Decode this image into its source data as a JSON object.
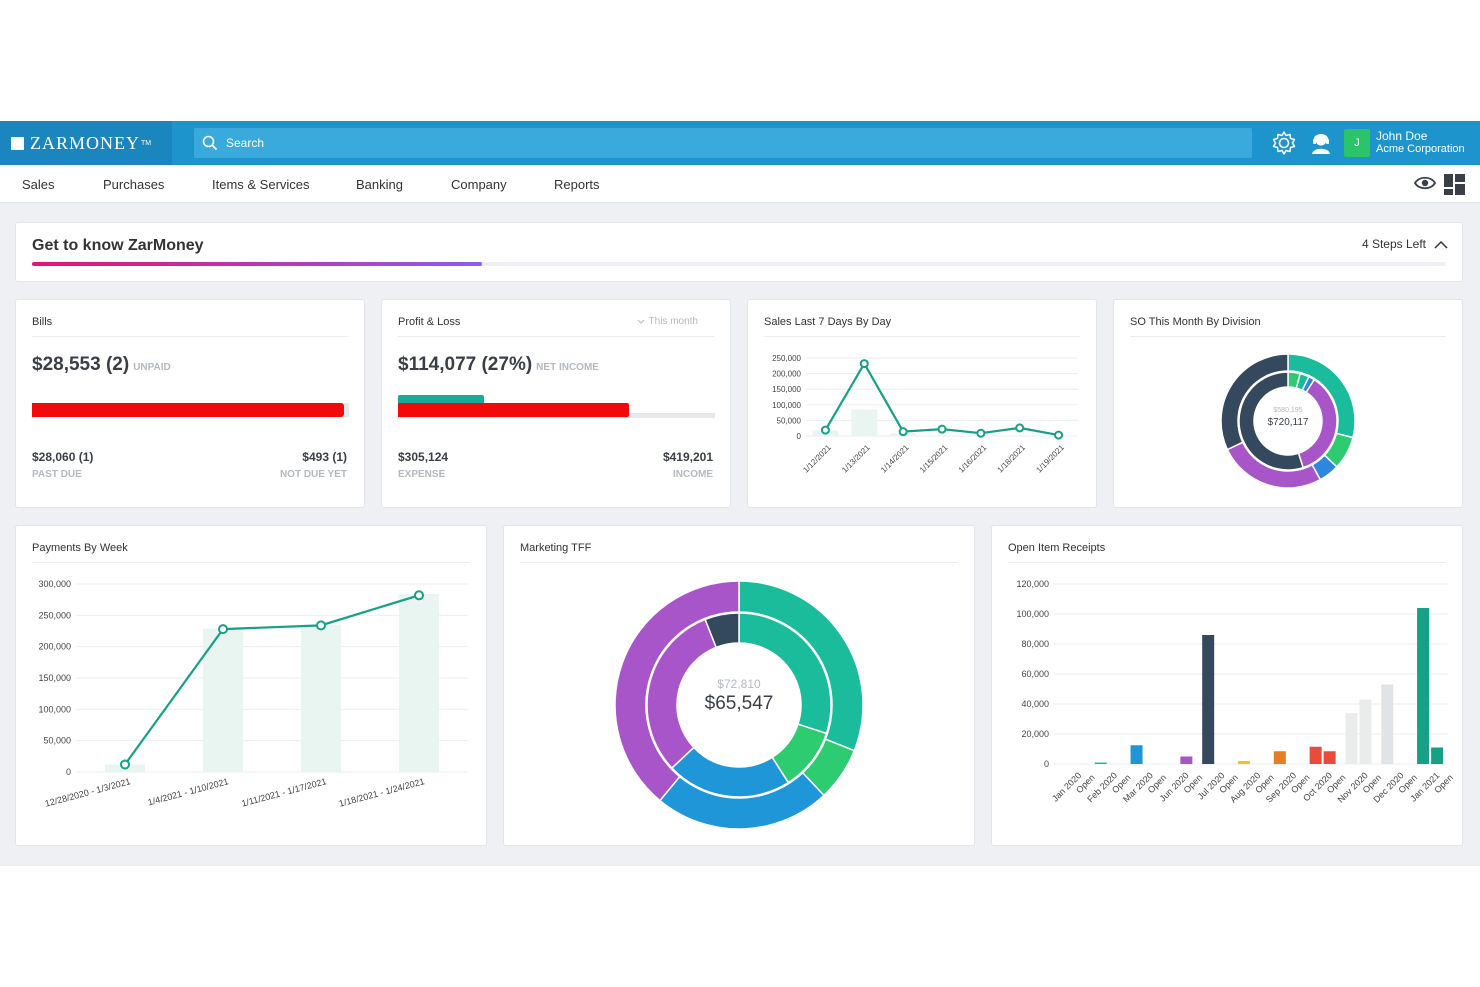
{
  "header": {
    "logo_text": "ZarMoney",
    "logo_tm": "TM",
    "search_placeholder": "Search",
    "user_initial": "J",
    "user_name": "John Doe",
    "user_company": "Acme Corporation"
  },
  "nav": {
    "items": [
      "Sales",
      "Purchases",
      "Items & Services",
      "Banking",
      "Company",
      "Reports"
    ]
  },
  "onboarding": {
    "title": "Get to know ZarMoney",
    "steps_left": "4 Steps Left",
    "progress_fraction": 0.318
  },
  "bills": {
    "title": "Bills",
    "amount": "$28,553 (2)",
    "amount_label": "UNPAID",
    "left_value": "$28,060 (1)",
    "left_label": "PAST DUE",
    "right_value": "$493 (1)",
    "right_label": "NOT DUE YET",
    "past_due_fraction": 0.983
  },
  "profit_loss": {
    "title": "Profit & Loss",
    "period": "This month",
    "amount": "$114,077 (27%)",
    "amount_label": "NET INCOME",
    "left_value": "$305,124",
    "left_label": "EXPENSE",
    "right_value": "$419,201",
    "right_label": "INCOME",
    "expense_fraction": 0.728,
    "net_fraction": 0.272
  },
  "colors": {
    "brand_blue": "#1e94cc",
    "line_teal": "#16a085",
    "bar_red": "#f20a0a"
  },
  "chart_data": [
    {
      "id": "sales_last_7_days",
      "type": "line",
      "title": "Sales Last 7 Days By Day",
      "x": [
        "1/12/2021",
        "1/13/2021",
        "1/14/2021",
        "1/15/2021",
        "1/16/2021",
        "1/18/2021",
        "1/19/2021"
      ],
      "series": [
        {
          "values": [
            19000,
            232000,
            14000,
            22000,
            9000,
            26000,
            3000
          ]
        },
        {
          "values": [
            18000,
            85000,
            9000,
            0,
            0,
            0,
            0
          ]
        }
      ],
      "yticks": [
        "250,000",
        "200,000",
        "150,000",
        "100,000",
        "50,000",
        "0"
      ],
      "ylim": [
        0,
        250000
      ]
    },
    {
      "id": "so_by_division",
      "type": "pie",
      "title": "SO This Month By Division",
      "center_top": "$580,195",
      "center_main": "$720,117",
      "outer": [
        {
          "value": 0.29,
          "color": "#1abc9c"
        },
        {
          "value": 0.08,
          "color": "#2ecc71"
        },
        {
          "value": 0.05,
          "color": "#2e86de"
        },
        {
          "value": 0.26,
          "color": "#a855c9"
        },
        {
          "value": 0.32,
          "color": "#34495e"
        }
      ],
      "inner": [
        {
          "value": 0.04,
          "color": "#2ecc71"
        },
        {
          "value": 0.03,
          "color": "#1abc9c"
        },
        {
          "value": 0.02,
          "color": "#2e86de"
        },
        {
          "value": 0.36,
          "color": "#a855c9"
        },
        {
          "value": 0.55,
          "color": "#34495e"
        }
      ]
    },
    {
      "id": "payments_by_week",
      "type": "line",
      "title": "Payments By Week",
      "x": [
        "12/28/2020 - 1/3/2021",
        "1/4/2021 - 1/10/2021",
        "1/11/2021 - 1/17/2021",
        "1/18/2021 - 1/24/2021"
      ],
      "series": [
        {
          "values": [
            12000,
            228000,
            234000,
            282000
          ]
        },
        {
          "values": [
            12000,
            229000,
            235000,
            284000
          ]
        }
      ],
      "yticks": [
        "300,000",
        "250,000",
        "200,000",
        "150,000",
        "100,000",
        "50,000",
        "0"
      ],
      "ylim": [
        0,
        300000
      ]
    },
    {
      "id": "marketing_tff",
      "type": "pie",
      "title": "Marketing TFF",
      "center_top": "$72,810",
      "center_main": "$65,547",
      "outer": [
        {
          "value": 0.31,
          "color": "#1abc9c"
        },
        {
          "value": 0.07,
          "color": "#2ecc71"
        },
        {
          "value": 0.23,
          "color": "#1e96d8"
        },
        {
          "value": 0.39,
          "color": "#a855c9"
        }
      ],
      "inner": [
        {
          "value": 0.3,
          "color": "#1abc9c"
        },
        {
          "value": 0.11,
          "color": "#2ecc71"
        },
        {
          "value": 0.22,
          "color": "#1e96d8"
        },
        {
          "value": 0.31,
          "color": "#a855c9"
        },
        {
          "value": 0.06,
          "color": "#34495e"
        }
      ]
    },
    {
      "id": "open_item_receipts",
      "type": "bar",
      "title": "Open Item Receipts",
      "categories": [
        "Jan 2020 Open",
        "Feb 2020 Open",
        "Mar 2020 Open",
        "Jun 2020 Open",
        "Jul 2020 Open",
        "Aug 2020 Open",
        "Sep 2020 Open",
        "Oct 2020 Open",
        "Nov 2020 Open",
        "Dec 2020 Open",
        "Jan 2021 Open"
      ],
      "series": [
        {
          "values": [
            0,
            1000,
            12500,
            0,
            86000,
            2000,
            8500,
            11500,
            34000,
            53000,
            104000
          ],
          "colors": [
            "#1abc9c",
            "#1abc9c",
            "#1e96d8",
            "#a855c9",
            "#34495e",
            "#f1c40f",
            "#e67e22",
            "#e74c3c",
            "#e9eceb",
            "#e0e4e6",
            "#16a085"
          ]
        },
        {
          "values": [
            0,
            0,
            0,
            5000,
            0,
            0,
            0,
            8500,
            43000,
            0,
            11000
          ],
          "colors": [
            "#1abc9c",
            "#1abc9c",
            "#1e96d8",
            "#a855c9",
            "#34495e",
            "#f1c40f",
            "#e67e22",
            "#e74c3c",
            "#e9eceb",
            "#99a3a4",
            "#16a085"
          ]
        }
      ],
      "yticks": [
        "120,000",
        "100,000",
        "80,000",
        "60,000",
        "40,000",
        "20,000",
        "0"
      ],
      "ylim": [
        0,
        120000
      ]
    }
  ]
}
